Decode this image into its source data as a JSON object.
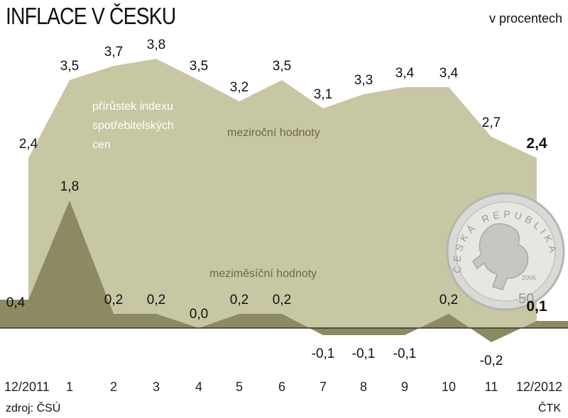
{
  "header": {
    "title": "INFLACE V ČESKU",
    "unit": "v procentech"
  },
  "footer": {
    "source": "zdroj: ČSÚ",
    "credit": "ČTK"
  },
  "annotations": {
    "index_line1": "přírůstek indexu",
    "index_line2": "spotřebitelských",
    "index_line3": "cen",
    "yoy": "meziroční hodnoty",
    "mom": "meziměsíční hodnoty",
    "coin_text": "ČESKÁ REPUBLIKA",
    "coin_year": "2006",
    "coin_value": "50"
  },
  "colors": {
    "yoy_fill": "#c8c7a3",
    "mom_fill": "#8c8a63",
    "yoy_text": "#6b6940",
    "index_text": "#ffffff",
    "baseline": "#333333"
  },
  "chart_data": {
    "type": "area",
    "categories": [
      "12/2011",
      "1",
      "2",
      "3",
      "4",
      "5",
      "6",
      "7",
      "8",
      "9",
      "10",
      "11",
      "12/2012"
    ],
    "series": [
      {
        "name": "meziroční hodnoty",
        "values": [
          2.4,
          3.5,
          3.7,
          3.8,
          3.5,
          3.2,
          3.5,
          3.1,
          3.3,
          3.4,
          3.4,
          2.7,
          2.4
        ],
        "labels": [
          "2,4",
          "3,5",
          "3,7",
          "3,8",
          "3,5",
          "3,2",
          "3,5",
          "3,1",
          "3,3",
          "3,4",
          "3,4",
          "2,7",
          "2,4"
        ]
      },
      {
        "name": "meziměsíční hodnoty",
        "values": [
          0.4,
          1.8,
          0.2,
          0.2,
          0.0,
          0.2,
          0.2,
          -0.1,
          -0.1,
          -0.1,
          0.2,
          -0.2,
          0.1
        ],
        "labels": [
          "0,4",
          "1,8",
          "0,2",
          "0,2",
          "0,0",
          "0,2",
          "0,2",
          "-0,1",
          "-0,1",
          "-0,1",
          "0,2",
          "-0,2",
          "0,1"
        ]
      }
    ],
    "baseline": 0,
    "grid": false,
    "legend": "none"
  }
}
